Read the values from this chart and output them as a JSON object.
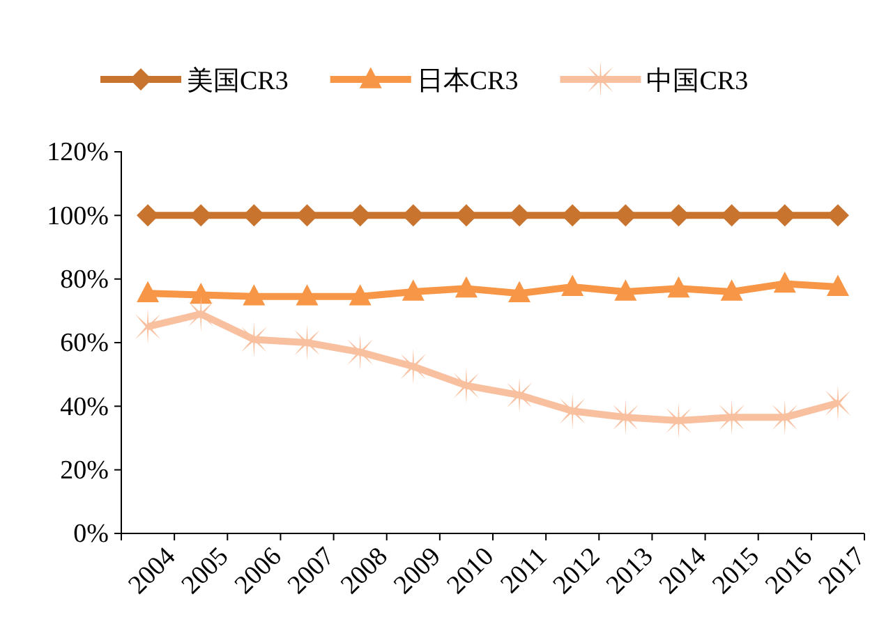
{
  "chart_data": {
    "type": "line",
    "categories": [
      "2004",
      "2005",
      "2006",
      "2007",
      "2008",
      "2009",
      "2010",
      "2011",
      "2012",
      "2013",
      "2014",
      "2015",
      "2016",
      "2017"
    ],
    "series": [
      {
        "name": "美国CR3",
        "color": "#c8742f",
        "marker": "diamond",
        "values": [
          100,
          100,
          100,
          100,
          100,
          100,
          100,
          100,
          100,
          100,
          100,
          100,
          100,
          100
        ]
      },
      {
        "name": "日本CR3",
        "color": "#f79646",
        "marker": "triangle",
        "values": [
          75.5,
          75,
          74.5,
          74.5,
          74.5,
          76,
          77,
          75.5,
          77.5,
          76,
          77,
          76,
          78.5,
          77.5
        ]
      },
      {
        "name": "中国CR3",
        "color": "#f9c0a0",
        "marker": "cross",
        "values": [
          65,
          69,
          61,
          60,
          57,
          52.5,
          46.5,
          43.5,
          38.5,
          36.5,
          35.5,
          36.5,
          36.5,
          41
        ]
      }
    ],
    "ylim": [
      0,
      120
    ],
    "yticks": [
      {
        "value": 0,
        "label": "0%"
      },
      {
        "value": 20,
        "label": "20%"
      },
      {
        "value": 40,
        "label": "40%"
      },
      {
        "value": 60,
        "label": "60%"
      },
      {
        "value": 80,
        "label": "80%"
      },
      {
        "value": 100,
        "label": "100%"
      },
      {
        "value": 120,
        "label": "120%"
      }
    ],
    "grid": false,
    "legend": "top",
    "line_style": "solid"
  }
}
